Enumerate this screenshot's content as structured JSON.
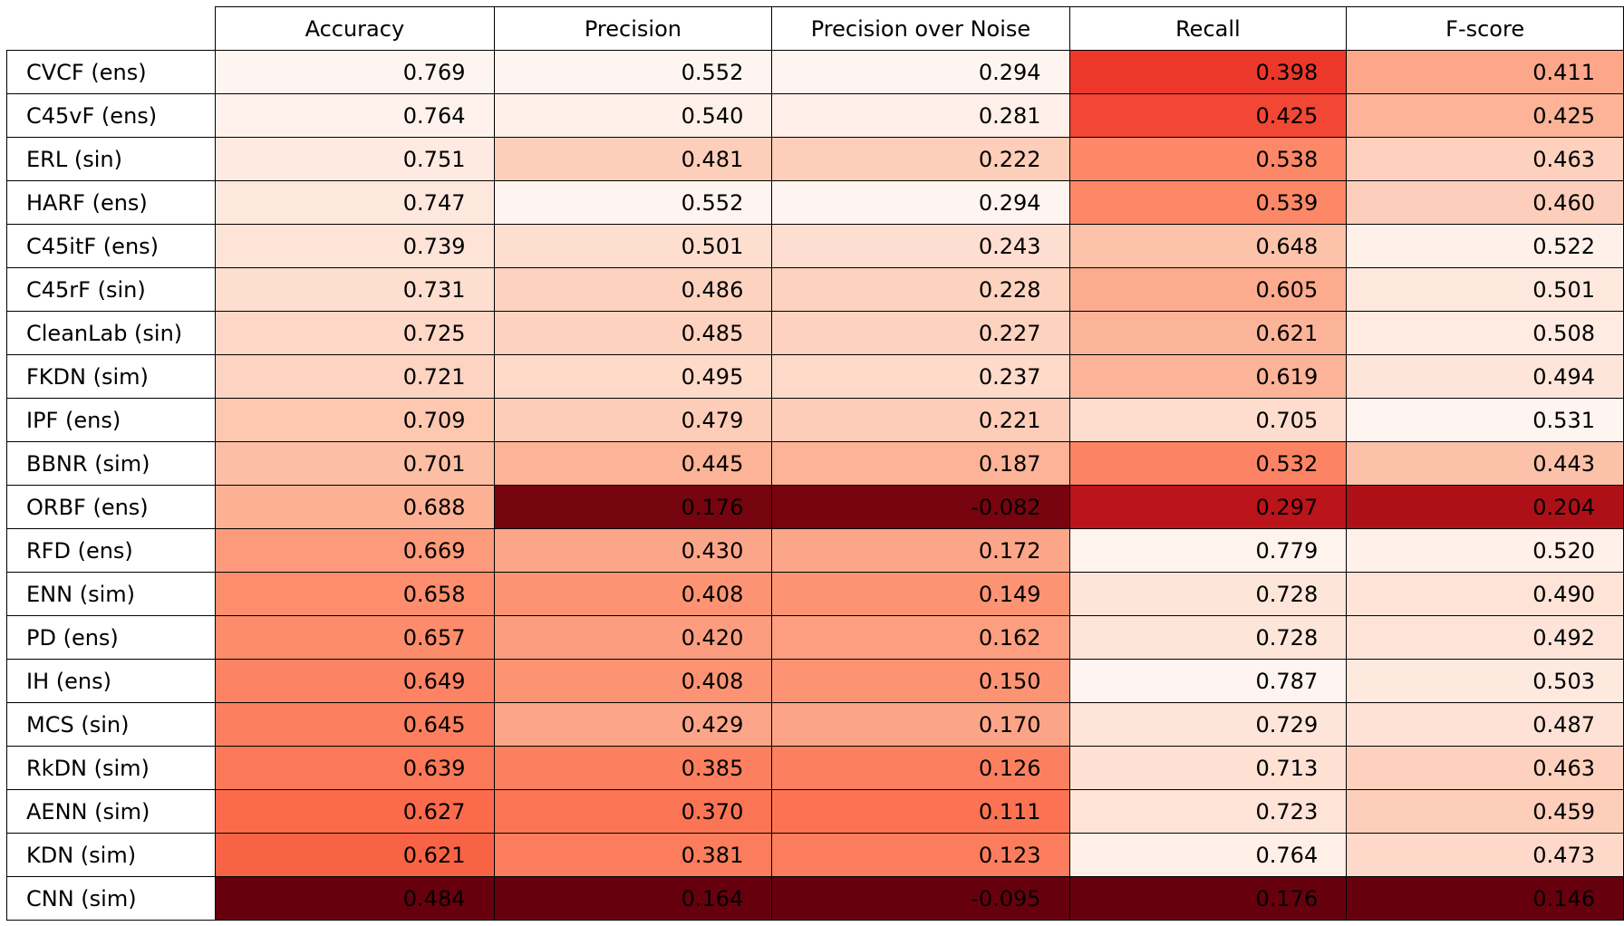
{
  "chart_data": {
    "type": "heatmap",
    "colormap": "Reds",
    "columns": [
      "Accuracy",
      "Precision",
      "Precision over Noise",
      "Recall",
      "F-score"
    ],
    "rows": [
      {
        "label": "CVCF (ens)",
        "values": [
          "0.769",
          "0.552",
          "0.294",
          "0.398",
          "0.411"
        ]
      },
      {
        "label": "C45vF (ens)",
        "values": [
          "0.764",
          "0.540",
          "0.281",
          "0.425",
          "0.425"
        ]
      },
      {
        "label": "ERL (sin)",
        "values": [
          "0.751",
          "0.481",
          "0.222",
          "0.538",
          "0.463"
        ]
      },
      {
        "label": "HARF (ens)",
        "values": [
          "0.747",
          "0.552",
          "0.294",
          "0.539",
          "0.460"
        ]
      },
      {
        "label": "C45itF (ens)",
        "values": [
          "0.739",
          "0.501",
          "0.243",
          "0.648",
          "0.522"
        ]
      },
      {
        "label": "C45rF (sin)",
        "values": [
          "0.731",
          "0.486",
          "0.228",
          "0.605",
          "0.501"
        ]
      },
      {
        "label": "CleanLab (sin)",
        "values": [
          "0.725",
          "0.485",
          "0.227",
          "0.621",
          "0.508"
        ]
      },
      {
        "label": "FKDN (sim)",
        "values": [
          "0.721",
          "0.495",
          "0.237",
          "0.619",
          "0.494"
        ]
      },
      {
        "label": "IPF (ens)",
        "values": [
          "0.709",
          "0.479",
          "0.221",
          "0.705",
          "0.531"
        ]
      },
      {
        "label": "BBNR (sim)",
        "values": [
          "0.701",
          "0.445",
          "0.187",
          "0.532",
          "0.443"
        ]
      },
      {
        "label": "ORBF (ens)",
        "values": [
          "0.688",
          "0.176",
          "-0.082",
          "0.297",
          "0.204"
        ]
      },
      {
        "label": "RFD (ens)",
        "values": [
          "0.669",
          "0.430",
          "0.172",
          "0.779",
          "0.520"
        ]
      },
      {
        "label": "ENN (sim)",
        "values": [
          "0.658",
          "0.408",
          "0.149",
          "0.728",
          "0.490"
        ]
      },
      {
        "label": "PD (ens)",
        "values": [
          "0.657",
          "0.420",
          "0.162",
          "0.728",
          "0.492"
        ]
      },
      {
        "label": "IH (ens)",
        "values": [
          "0.649",
          "0.408",
          "0.150",
          "0.787",
          "0.503"
        ]
      },
      {
        "label": "MCS (sin)",
        "values": [
          "0.645",
          "0.429",
          "0.170",
          "0.729",
          "0.487"
        ]
      },
      {
        "label": "RkDN (sim)",
        "values": [
          "0.639",
          "0.385",
          "0.126",
          "0.713",
          "0.463"
        ]
      },
      {
        "label": "AENN (sim)",
        "values": [
          "0.627",
          "0.370",
          "0.111",
          "0.723",
          "0.459"
        ]
      },
      {
        "label": "KDN (sim)",
        "values": [
          "0.621",
          "0.381",
          "0.123",
          "0.764",
          "0.473"
        ]
      },
      {
        "label": "CNN (sim)",
        "values": [
          "0.484",
          "0.164",
          "-0.095",
          "0.176",
          "0.146"
        ]
      }
    ]
  }
}
